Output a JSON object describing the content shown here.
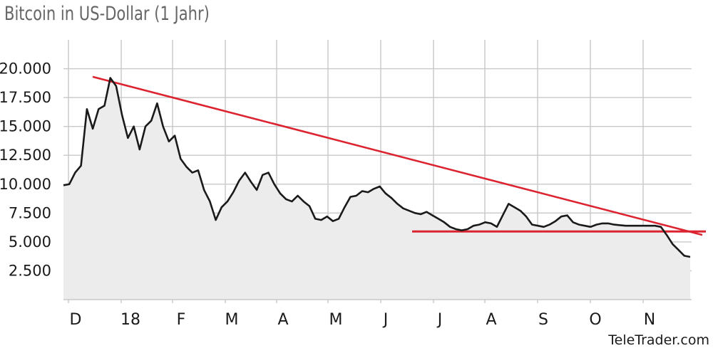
{
  "chart_data": {
    "type": "line",
    "title": "Bitcoin in US-Dollar (1 Jahr)",
    "xlabel": "",
    "ylabel": "",
    "ylim": [
      0,
      22500
    ],
    "grid": true,
    "x_tick_labels": [
      "D",
      "18",
      "F",
      "M",
      "A",
      "M",
      "J",
      "J",
      "A",
      "S",
      "O",
      "N"
    ],
    "y_tick_labels": [
      "20.000",
      "17.500",
      "15.000",
      "12.500",
      "10.000",
      "7.500",
      "5.000",
      "2.500"
    ],
    "y_ticks": [
      20000,
      17500,
      15000,
      12500,
      10000,
      7500,
      5000,
      2500
    ],
    "series": [
      {
        "color": "#1a1a1a",
        "fill": "#ececec",
        "values": [
          9900,
          10000,
          11000,
          11600,
          16500,
          14800,
          16500,
          16800,
          19200,
          18500,
          16000,
          14000,
          15000,
          13000,
          15000,
          15500,
          17000,
          15000,
          13700,
          14200,
          12200,
          11500,
          11000,
          11200,
          9500,
          8500,
          6900,
          8000,
          8500,
          9300,
          10300,
          11000,
          10200,
          9500,
          10800,
          11000,
          10000,
          9200,
          8700,
          8500,
          9000,
          8500,
          8100,
          7000,
          6900,
          7200,
          6800,
          7000,
          8000,
          8900,
          9000,
          9400,
          9300,
          9600,
          9800,
          9200,
          8800,
          8300,
          7900,
          7700,
          7500,
          7400,
          7600,
          7300,
          7000,
          6700,
          6300,
          6100,
          6000,
          6100,
          6400,
          6500,
          6700,
          6600,
          6300,
          7300,
          8300,
          8000,
          7700,
          7200,
          6500,
          6400,
          6300,
          6500,
          6800,
          7200,
          7300,
          6700,
          6500,
          6400,
          6300,
          6500,
          6600,
          6600,
          6500,
          6450,
          6400,
          6400,
          6400,
          6400,
          6400,
          6400,
          6300,
          5600,
          4800,
          4300,
          3800,
          3700
        ]
      },
      {
        "color": "#dc2430",
        "values": [
          19300,
          5600
        ]
      },
      {
        "color": "#dc2430",
        "values": [
          5900,
          5900
        ]
      }
    ]
  },
  "footer": {
    "source": "TeleTrader.com"
  }
}
